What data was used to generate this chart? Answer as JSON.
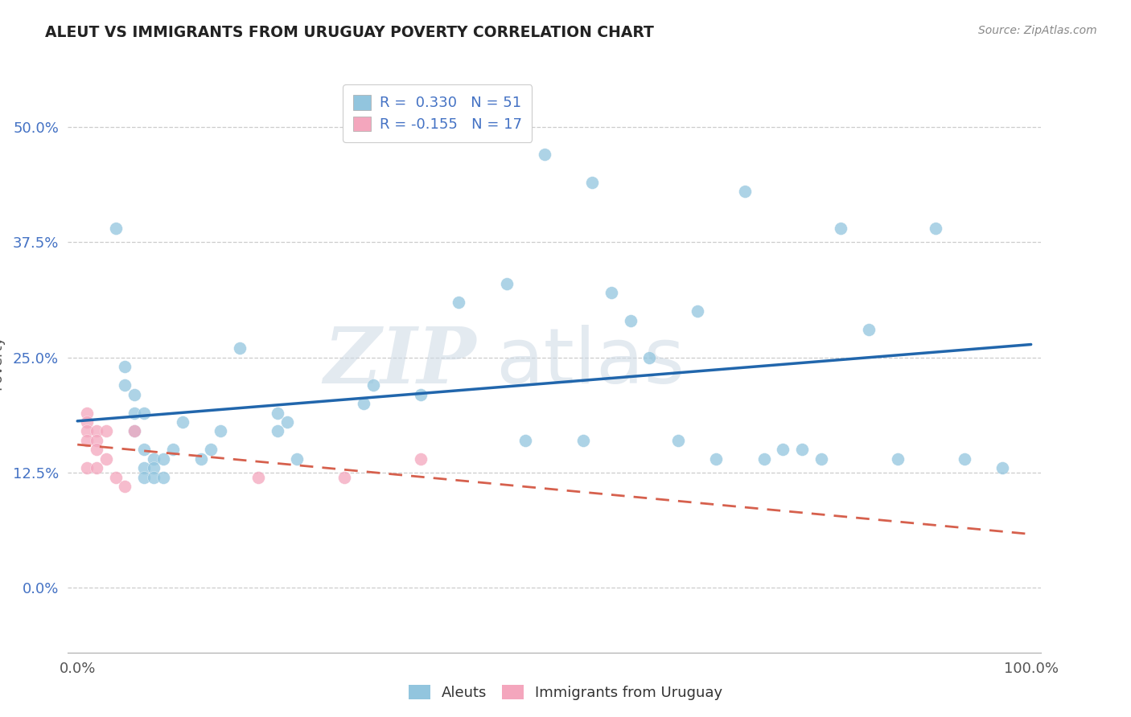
{
  "title": "ALEUT VS IMMIGRANTS FROM URUGUAY POVERTY CORRELATION CHART",
  "source": "Source: ZipAtlas.com",
  "ylabel": "Poverty",
  "legend_label1": "Aleuts",
  "legend_label2": "Immigrants from Uruguay",
  "r1": 0.33,
  "n1": 51,
  "r2": -0.155,
  "n2": 17,
  "xlim": [
    -0.01,
    1.01
  ],
  "ylim": [
    -0.07,
    0.56
  ],
  "yticks": [
    0.0,
    0.125,
    0.25,
    0.375,
    0.5
  ],
  "ytick_labels": [
    "0.0%",
    "12.5%",
    "25.0%",
    "37.5%",
    "50.0%"
  ],
  "xticks": [
    0.0,
    1.0
  ],
  "xtick_labels": [
    "0.0%",
    "100.0%"
  ],
  "color_blue": "#92c5de",
  "color_pink": "#f4a6bd",
  "color_line_blue": "#2166ac",
  "color_line_pink": "#d6604d",
  "background_color": "#ffffff",
  "grid_color": "#cccccc",
  "aleuts_x": [
    0.04,
    0.05,
    0.05,
    0.06,
    0.06,
    0.06,
    0.07,
    0.07,
    0.07,
    0.07,
    0.08,
    0.08,
    0.08,
    0.09,
    0.09,
    0.1,
    0.11,
    0.13,
    0.14,
    0.15,
    0.17,
    0.21,
    0.21,
    0.22,
    0.23,
    0.3,
    0.31,
    0.36,
    0.4,
    0.45,
    0.47,
    0.49,
    0.53,
    0.54,
    0.56,
    0.58,
    0.6,
    0.63,
    0.65,
    0.67,
    0.7,
    0.72,
    0.74,
    0.76,
    0.78,
    0.8,
    0.83,
    0.86,
    0.9,
    0.93,
    0.97
  ],
  "aleuts_y": [
    0.39,
    0.24,
    0.22,
    0.21,
    0.19,
    0.17,
    0.19,
    0.15,
    0.13,
    0.12,
    0.14,
    0.13,
    0.12,
    0.14,
    0.12,
    0.15,
    0.18,
    0.14,
    0.15,
    0.17,
    0.26,
    0.19,
    0.17,
    0.18,
    0.14,
    0.2,
    0.22,
    0.21,
    0.31,
    0.33,
    0.16,
    0.47,
    0.16,
    0.44,
    0.32,
    0.29,
    0.25,
    0.16,
    0.3,
    0.14,
    0.43,
    0.14,
    0.15,
    0.15,
    0.14,
    0.39,
    0.28,
    0.14,
    0.39,
    0.14,
    0.13
  ],
  "uruguay_x": [
    0.01,
    0.01,
    0.01,
    0.01,
    0.01,
    0.02,
    0.02,
    0.02,
    0.02,
    0.03,
    0.03,
    0.04,
    0.05,
    0.06,
    0.19,
    0.28,
    0.36
  ],
  "uruguay_y": [
    0.19,
    0.18,
    0.17,
    0.16,
    0.13,
    0.17,
    0.16,
    0.15,
    0.13,
    0.17,
    0.14,
    0.12,
    0.11,
    0.17,
    0.12,
    0.12,
    0.14
  ]
}
